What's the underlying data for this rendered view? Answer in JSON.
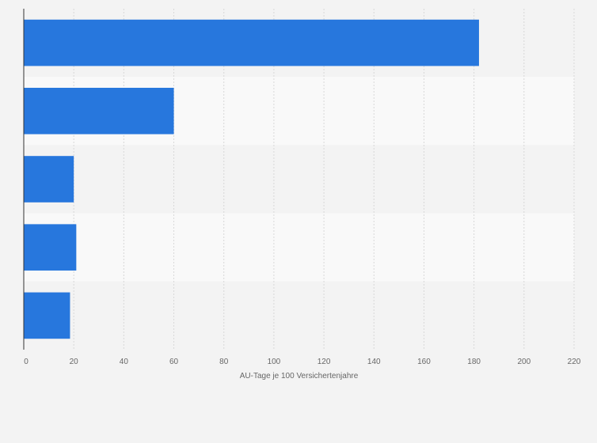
{
  "chart_data": {
    "type": "bar",
    "orientation": "horizontal",
    "categories": [
      "",
      "",
      "",
      "",
      ""
    ],
    "values": [
      182,
      60,
      20,
      21,
      18.5
    ],
    "xlabel": "AU-Tage je 100 Versichertenjahre",
    "ylabel": "",
    "xlim": [
      0,
      220
    ],
    "xticks": [
      "0",
      "20",
      "40",
      "60",
      "80",
      "100",
      "120",
      "140",
      "160",
      "180",
      "200",
      "220"
    ],
    "grid": "vertical dashed",
    "legend": "none",
    "colors": {
      "bar": "#2777dd",
      "band_light": "#f9f9f9",
      "band_dark": "#f3f3f3",
      "grid": "#d8d8d8",
      "axis": "#333333",
      "text": "#666666"
    }
  }
}
